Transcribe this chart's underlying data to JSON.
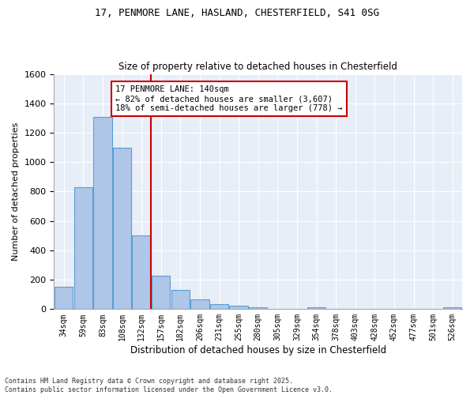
{
  "title1": "17, PENMORE LANE, HASLAND, CHESTERFIELD, S41 0SG",
  "title2": "Size of property relative to detached houses in Chesterfield",
  "xlabel": "Distribution of detached houses by size in Chesterfield",
  "ylabel": "Number of detached properties",
  "categories": [
    "34sqm",
    "59sqm",
    "83sqm",
    "108sqm",
    "132sqm",
    "157sqm",
    "182sqm",
    "206sqm",
    "231sqm",
    "255sqm",
    "280sqm",
    "305sqm",
    "329sqm",
    "354sqm",
    "378sqm",
    "403sqm",
    "428sqm",
    "452sqm",
    "477sqm",
    "501sqm",
    "526sqm"
  ],
  "values": [
    150,
    830,
    1310,
    1100,
    500,
    230,
    130,
    65,
    35,
    25,
    13,
    0,
    0,
    15,
    0,
    0,
    0,
    0,
    0,
    0,
    10
  ],
  "bar_color": "#aec6e8",
  "bar_edge_color": "#5b9bd5",
  "bg_color": "#e8eef7",
  "grid_color": "#ffffff",
  "vline_x": 4.5,
  "vline_color": "#cc0000",
  "annotation_line1": "17 PENMORE LANE: 140sqm",
  "annotation_line2": "← 82% of detached houses are smaller (3,607)",
  "annotation_line3": "18% of semi-detached houses are larger (778) →",
  "annotation_box_color": "#cc0000",
  "footer": "Contains HM Land Registry data © Crown copyright and database right 2025.\nContains public sector information licensed under the Open Government Licence v3.0.",
  "ylim": [
    0,
    1600
  ],
  "yticks": [
    0,
    200,
    400,
    600,
    800,
    1000,
    1200,
    1400,
    1600
  ]
}
